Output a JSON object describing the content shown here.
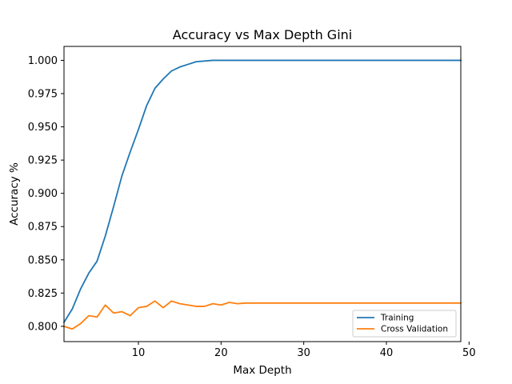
{
  "chart_data": {
    "type": "line",
    "title": "Accuracy vs Max Depth Gini",
    "xlabel": "Max Depth",
    "ylabel": "Accuracy %",
    "xlim": [
      1,
      49
    ],
    "ylim": [
      0.7885,
      1.0105
    ],
    "xticks": [
      10,
      20,
      30,
      40,
      50
    ],
    "yticks": [
      0.8,
      0.825,
      0.85,
      0.875,
      0.9,
      0.925,
      0.95,
      0.975,
      1.0
    ],
    "xtick_labels": [
      "10",
      "20",
      "30",
      "40",
      "50"
    ],
    "ytick_labels": [
      "0.800",
      "0.825",
      "0.850",
      "0.875",
      "0.900",
      "0.925",
      "0.950",
      "0.975",
      "1.000"
    ],
    "grid": false,
    "legend_position": "lower right",
    "x": [
      1,
      2,
      3,
      4,
      5,
      6,
      7,
      8,
      9,
      10,
      11,
      12,
      13,
      14,
      15,
      16,
      17,
      18,
      19,
      20,
      21,
      22,
      23,
      24,
      25,
      26,
      27,
      28,
      29,
      30,
      31,
      32,
      33,
      34,
      35,
      36,
      37,
      38,
      39,
      40,
      41,
      42,
      43,
      44,
      45,
      46,
      47,
      48,
      49
    ],
    "series": [
      {
        "name": "Training",
        "color": "#1f77b4",
        "values": [
          0.803,
          0.813,
          0.828,
          0.84,
          0.849,
          0.868,
          0.89,
          0.913,
          0.931,
          0.948,
          0.966,
          0.979,
          0.986,
          0.992,
          0.995,
          0.997,
          0.999,
          0.9995,
          1.0,
          1.0,
          1.0,
          1.0,
          1.0,
          1.0,
          1.0,
          1.0,
          1.0,
          1.0,
          1.0,
          1.0,
          1.0,
          1.0,
          1.0,
          1.0,
          1.0,
          1.0,
          1.0,
          1.0,
          1.0,
          1.0,
          1.0,
          1.0,
          1.0,
          1.0,
          1.0,
          1.0,
          1.0,
          1.0,
          1.0
        ]
      },
      {
        "name": "Cross Validation",
        "color": "#ff7f0e",
        "values": [
          0.8,
          0.798,
          0.802,
          0.808,
          0.807,
          0.816,
          0.81,
          0.811,
          0.808,
          0.814,
          0.815,
          0.819,
          0.814,
          0.819,
          0.817,
          0.816,
          0.815,
          0.815,
          0.817,
          0.816,
          0.818,
          0.817,
          0.8175,
          0.8175,
          0.8175,
          0.8175,
          0.8175,
          0.8175,
          0.8175,
          0.8175,
          0.8175,
          0.8175,
          0.8175,
          0.8175,
          0.8175,
          0.8175,
          0.8175,
          0.8175,
          0.8175,
          0.8175,
          0.8175,
          0.8175,
          0.8175,
          0.8175,
          0.8175,
          0.8175,
          0.8175,
          0.8175,
          0.8175
        ]
      }
    ]
  }
}
